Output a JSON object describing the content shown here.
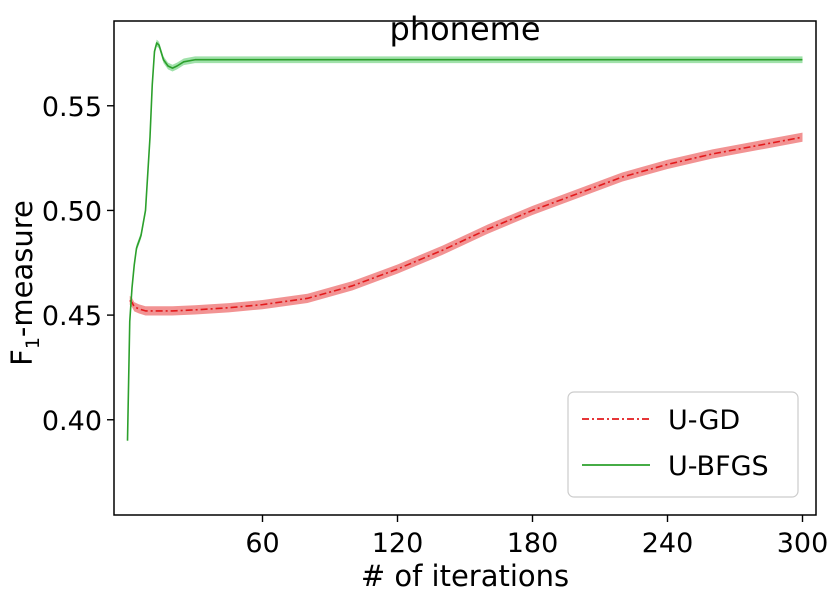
{
  "chart_data": {
    "type": "line",
    "title": "phoneme",
    "xlabel": "# of iterations",
    "ylabel": "F1-measure",
    "xlim": [
      -6,
      306
    ],
    "ylim": [
      0.3545,
      0.5905
    ],
    "xticks": [
      60,
      120,
      180,
      240,
      300
    ],
    "xtick_labels": [
      "60",
      "120",
      "180",
      "240",
      "300"
    ],
    "yticks": [
      0.4,
      0.45,
      0.5,
      0.55
    ],
    "ytick_labels": [
      "0.40",
      "0.45",
      "0.50",
      "0.55"
    ],
    "legend_position": "lower-right",
    "grid": false,
    "series": [
      {
        "name": "U-GD",
        "color": "#e31a1c",
        "band_color": "#f08080",
        "style": "dash-dot",
        "x": [
          1,
          2,
          3,
          5,
          8,
          12,
          20,
          30,
          45,
          60,
          80,
          100,
          120,
          140,
          160,
          180,
          200,
          220,
          240,
          260,
          280,
          300
        ],
        "y": [
          0.457,
          0.456,
          0.454,
          0.453,
          0.452,
          0.452,
          0.452,
          0.4525,
          0.4535,
          0.455,
          0.458,
          0.464,
          0.472,
          0.481,
          0.491,
          0.5,
          0.508,
          0.516,
          0.522,
          0.527,
          0.531,
          0.535
        ],
        "band": 0.0022
      },
      {
        "name": "U-BFGS",
        "color": "#2ca02c",
        "band_color": "#8fdc9b",
        "style": "solid",
        "x": [
          0,
          1,
          2,
          3,
          4,
          6,
          8,
          10,
          11,
          12,
          13,
          14,
          16,
          18,
          20,
          22,
          25,
          30,
          40,
          60,
          100,
          150,
          200,
          250,
          300
        ],
        "y": [
          0.39,
          0.447,
          0.463,
          0.474,
          0.482,
          0.488,
          0.5,
          0.535,
          0.56,
          0.576,
          0.58,
          0.579,
          0.572,
          0.569,
          0.568,
          0.569,
          0.571,
          0.572,
          0.572,
          0.572,
          0.572,
          0.572,
          0.572,
          0.572,
          0.572
        ],
        "band": 0.0016
      }
    ]
  }
}
